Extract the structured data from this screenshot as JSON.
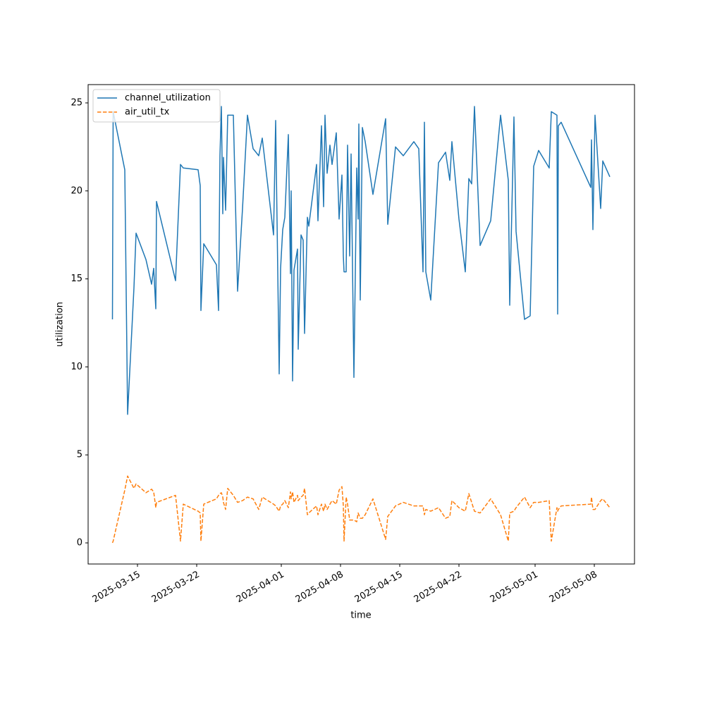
{
  "chart_data": {
    "type": "line",
    "xlabel": "time",
    "ylabel": "utilization",
    "x": [
      "2025-03-12T01:00",
      "2025-03-12T03:00",
      "2025-03-13T12:00",
      "2025-03-13T20:00",
      "2025-03-14T14:00",
      "2025-03-14T20:00",
      "2025-03-16T00:00",
      "2025-03-16T16:00",
      "2025-03-16T22:00",
      "2025-03-17T04:00",
      "2025-03-17T06:00",
      "2025-03-19T12:00",
      "2025-03-20T02:00",
      "2025-03-20T10:00",
      "2025-03-22T04:00",
      "2025-03-22T10:00",
      "2025-03-22T12:00",
      "2025-03-22T20:00",
      "2025-03-24T08:00",
      "2025-03-24T14:00",
      "2025-03-24T18:00",
      "2025-03-24T22:00",
      "2025-03-25T02:00",
      "2025-03-25T04:00",
      "2025-03-25T10:00",
      "2025-03-25T16:00",
      "2025-03-26T08:00",
      "2025-03-26T20:00",
      "2025-03-27T10:00",
      "2025-03-28T00:00",
      "2025-03-28T16:00",
      "2025-03-29T08:00",
      "2025-03-29T18:00",
      "2025-03-31T02:00",
      "2025-03-31T08:00",
      "2025-03-31T18:00",
      "2025-03-31T22:00",
      "2025-04-01T04:00",
      "2025-04-01T10:00",
      "2025-04-01T20:00",
      "2025-04-02T02:00",
      "2025-04-02T04:00",
      "2025-04-02T08:00",
      "2025-04-02T12:00",
      "2025-04-02T22:00",
      "2025-04-03T00:00",
      "2025-04-03T08:00",
      "2025-04-03T14:00",
      "2025-04-03T18:00",
      "2025-04-04T02:00",
      "2025-04-04T06:00",
      "2025-04-05T04:00",
      "2025-04-05T08:00",
      "2025-04-05T18:00",
      "2025-04-06T00:00",
      "2025-04-06T04:00",
      "2025-04-06T10:00",
      "2025-04-06T18:00",
      "2025-04-07T00:00",
      "2025-04-07T12:00",
      "2025-04-07T20:00",
      "2025-04-08T04:00",
      "2025-04-08T08:00",
      "2025-04-08T10:00",
      "2025-04-08T16:00",
      "2025-04-08T20:00",
      "2025-04-09T02:00",
      "2025-04-09T06:00",
      "2025-04-09T14:00",
      "2025-04-09T22:00",
      "2025-04-10T02:00",
      "2025-04-10T04:00",
      "2025-04-10T08:00",
      "2025-04-10T14:00",
      "2025-04-10T22:00",
      "2025-04-11T20:00",
      "2025-04-13T08:00",
      "2025-04-13T14:00",
      "2025-04-14T12:00",
      "2025-04-15T10:00",
      "2025-04-16T16:00",
      "2025-04-17T06:00",
      "2025-04-17T18:00",
      "2025-04-17T22:00",
      "2025-04-18T02:00",
      "2025-04-18T16:00",
      "2025-04-19T14:00",
      "2025-04-20T10:00",
      "2025-04-20T22:00",
      "2025-04-21T04:00",
      "2025-04-22T00:00",
      "2025-04-22T18:00",
      "2025-04-23T04:00",
      "2025-04-23T12:00",
      "2025-04-23T20:00",
      "2025-04-24T12:00",
      "2025-04-25T18:00",
      "2025-04-26T22:00",
      "2025-04-27T20:00",
      "2025-04-28T00:00",
      "2025-04-28T12:00",
      "2025-04-28T18:00",
      "2025-04-29T18:00",
      "2025-04-30T10:00",
      "2025-04-30T20:00",
      "2025-05-01T10:00",
      "2025-05-02T16:00",
      "2025-05-02T22:00",
      "2025-05-03T14:00",
      "2025-05-03T16:00",
      "2025-05-03T18:00",
      "2025-05-04T02:00",
      "2025-05-07T14:00",
      "2025-05-07T16:00",
      "2025-05-07T20:00",
      "2025-05-08T02:00",
      "2025-05-08T18:00",
      "2025-05-09T00:00",
      "2025-05-09T20:00"
    ],
    "series": [
      {
        "name": "channel_utilization",
        "color": "#1f77b4",
        "style": "solid",
        "values": [
          12.7,
          24.5,
          21.2,
          7.3,
          14.5,
          17.6,
          16.1,
          14.7,
          15.6,
          13.3,
          19.4,
          14.9,
          21.5,
          21.3,
          21.2,
          20.3,
          13.2,
          17.0,
          15.8,
          13.2,
          22.0,
          24.8,
          18.7,
          21.9,
          18.9,
          24.3,
          24.3,
          14.3,
          19.0,
          24.3,
          22.4,
          22.0,
          23.0,
          17.5,
          24.0,
          9.6,
          15.6,
          17.8,
          18.5,
          23.2,
          15.3,
          20.0,
          9.2,
          15.5,
          16.7,
          11.0,
          17.5,
          17.2,
          11.9,
          18.5,
          18.0,
          21.5,
          18.3,
          23.7,
          19.1,
          24.3,
          21.0,
          22.6,
          21.5,
          23.3,
          18.4,
          20.9,
          16.3,
          15.4,
          15.4,
          22.6,
          16.3,
          22.1,
          9.4,
          21.3,
          18.4,
          23.8,
          13.8,
          23.6,
          22.8,
          19.8,
          24.1,
          18.1,
          22.5,
          22.0,
          22.8,
          22.4,
          15.4,
          23.9,
          15.4,
          13.8,
          21.6,
          22.2,
          20.6,
          22.8,
          18.4,
          15.4,
          20.7,
          20.4,
          24.8,
          16.9,
          18.3,
          24.3,
          20.6,
          13.5,
          24.2,
          17.7,
          12.7,
          12.9,
          21.4,
          22.3,
          21.3,
          24.5,
          24.3,
          13.0,
          23.7,
          23.9,
          20.2,
          22.9,
          17.8,
          24.3,
          19.0,
          21.7,
          20.8
        ]
      },
      {
        "name": "air_util_tx",
        "color": "#ff7f0e",
        "style": "dashed",
        "values": [
          0.0,
          0.1,
          3.0,
          3.8,
          3.1,
          3.35,
          2.85,
          3.05,
          2.9,
          2.0,
          2.3,
          2.7,
          0.1,
          2.2,
          1.8,
          1.7,
          0.1,
          2.2,
          2.5,
          2.7,
          2.8,
          2.85,
          2.6,
          2.3,
          1.9,
          3.1,
          2.7,
          2.3,
          2.4,
          2.6,
          2.5,
          1.9,
          2.6,
          2.2,
          2.1,
          1.8,
          2.1,
          2.2,
          2.4,
          2.0,
          2.9,
          2.5,
          2.9,
          2.3,
          2.7,
          2.4,
          2.6,
          2.7,
          3.1,
          1.6,
          1.7,
          2.1,
          1.6,
          2.2,
          1.8,
          2.2,
          1.9,
          2.2,
          2.4,
          2.2,
          3.0,
          3.2,
          2.1,
          0.1,
          2.6,
          2.2,
          1.3,
          1.3,
          1.3,
          1.2,
          1.7,
          1.6,
          1.4,
          1.4,
          1.6,
          2.5,
          0.2,
          1.5,
          2.1,
          2.3,
          2.1,
          2.1,
          2.1,
          1.6,
          1.9,
          1.8,
          2.0,
          1.4,
          1.5,
          2.4,
          2.0,
          1.8,
          2.8,
          2.3,
          1.8,
          1.7,
          2.5,
          1.6,
          0.1,
          1.7,
          1.8,
          2.0,
          2.6,
          2.0,
          2.3,
          2.3,
          2.4,
          0.1,
          2.0,
          1.8,
          1.9,
          2.1,
          2.2,
          2.6,
          1.9,
          1.9,
          2.4,
          2.5,
          2.0
        ]
      }
    ],
    "xlim": [
      "2025-03-09T04:00",
      "2025-05-12T18:00"
    ],
    "xticks": [
      "2025-03-15",
      "2025-03-22",
      "2025-04-01",
      "2025-04-08",
      "2025-04-15",
      "2025-04-22",
      "2025-05-01",
      "2025-05-08"
    ],
    "ylim": [
      -1.2,
      26.04
    ],
    "yticks": [
      0,
      5,
      10,
      15,
      20,
      25
    ],
    "legend": "upper left",
    "grid": false
  }
}
